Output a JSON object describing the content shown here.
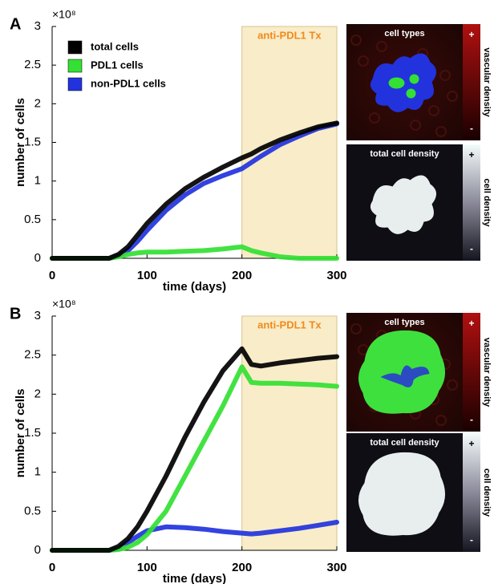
{
  "chart_data": [
    {
      "type": "line",
      "panel_label": "A",
      "y_scale_label": "×10⁸",
      "ylabel": "number of cells",
      "xlabel": "time (days)",
      "treatment": {
        "label": "anti-PDL1 Tx",
        "xrange": [
          200,
          300
        ]
      },
      "x": [
        0,
        20,
        40,
        60,
        70,
        80,
        90,
        100,
        120,
        140,
        160,
        180,
        200,
        210,
        220,
        240,
        260,
        280,
        300
      ],
      "series": [
        {
          "name": "total cells",
          "color": "#000000",
          "values": [
            0,
            0,
            0,
            0,
            0.05,
            0.15,
            0.3,
            0.45,
            0.7,
            0.9,
            1.05,
            1.18,
            1.3,
            1.35,
            1.42,
            1.53,
            1.62,
            1.7,
            1.75
          ]
        },
        {
          "name": "PDL1 cells",
          "color": "#33e033",
          "values": [
            0,
            0,
            0,
            0,
            0.02,
            0.05,
            0.07,
            0.08,
            0.08,
            0.09,
            0.1,
            0.12,
            0.15,
            0.1,
            0.07,
            0.02,
            0,
            0,
            0
          ]
        },
        {
          "name": "non-PDL1 cells",
          "color": "#2233dd",
          "values": [
            0,
            0,
            0,
            0,
            0.03,
            0.1,
            0.22,
            0.36,
            0.62,
            0.82,
            0.97,
            1.07,
            1.16,
            1.24,
            1.32,
            1.47,
            1.58,
            1.68,
            1.74
          ]
        }
      ],
      "legend": true,
      "xlim": [
        0,
        300
      ],
      "xticks": [
        0,
        100,
        200,
        300
      ],
      "ylim": [
        0,
        3
      ],
      "yticks": [
        0,
        0.5,
        1,
        1.5,
        2,
        2.5,
        3
      ],
      "panels": [
        {
          "title": "cell types",
          "colorbar_label": "vascular density",
          "max_label": "+",
          "min_label": "-"
        },
        {
          "title": "total cell density",
          "colorbar_label": "cell density",
          "max_label": "+",
          "min_label": "-"
        }
      ]
    },
    {
      "type": "line",
      "panel_label": "B",
      "y_scale_label": "×10⁸",
      "ylabel": "number of cells",
      "xlabel": "time (days)",
      "treatment": {
        "label": "anti-PDL1 Tx",
        "xrange": [
          200,
          300
        ]
      },
      "x": [
        0,
        20,
        40,
        60,
        70,
        80,
        90,
        100,
        120,
        140,
        160,
        180,
        200,
        210,
        220,
        240,
        260,
        280,
        300
      ],
      "series": [
        {
          "name": "total cells",
          "color": "#000000",
          "values": [
            0,
            0,
            0,
            0,
            0.05,
            0.15,
            0.3,
            0.5,
            0.95,
            1.45,
            1.9,
            2.3,
            2.58,
            2.38,
            2.36,
            2.4,
            2.43,
            2.46,
            2.48
          ]
        },
        {
          "name": "PDL1 cells",
          "color": "#33e033",
          "values": [
            0,
            0,
            0,
            0,
            0.01,
            0.04,
            0.1,
            0.2,
            0.5,
            0.95,
            1.4,
            1.85,
            2.35,
            2.15,
            2.14,
            2.14,
            2.13,
            2.12,
            2.1
          ]
        },
        {
          "name": "non-PDL1 cells",
          "color": "#2233dd",
          "values": [
            0,
            0,
            0,
            0,
            0.02,
            0.1,
            0.18,
            0.25,
            0.3,
            0.29,
            0.27,
            0.24,
            0.22,
            0.21,
            0.22,
            0.25,
            0.28,
            0.32,
            0.36
          ]
        }
      ],
      "legend": false,
      "xlim": [
        0,
        300
      ],
      "xticks": [
        0,
        100,
        200,
        300
      ],
      "ylim": [
        0,
        3
      ],
      "yticks": [
        0,
        0.5,
        1,
        1.5,
        2,
        2.5,
        3
      ],
      "panels": [
        {
          "title": "cell types",
          "colorbar_label": "vascular density",
          "max_label": "+",
          "min_label": "-"
        },
        {
          "title": "total cell density",
          "colorbar_label": "cell density",
          "max_label": "+",
          "min_label": "-"
        }
      ]
    }
  ]
}
